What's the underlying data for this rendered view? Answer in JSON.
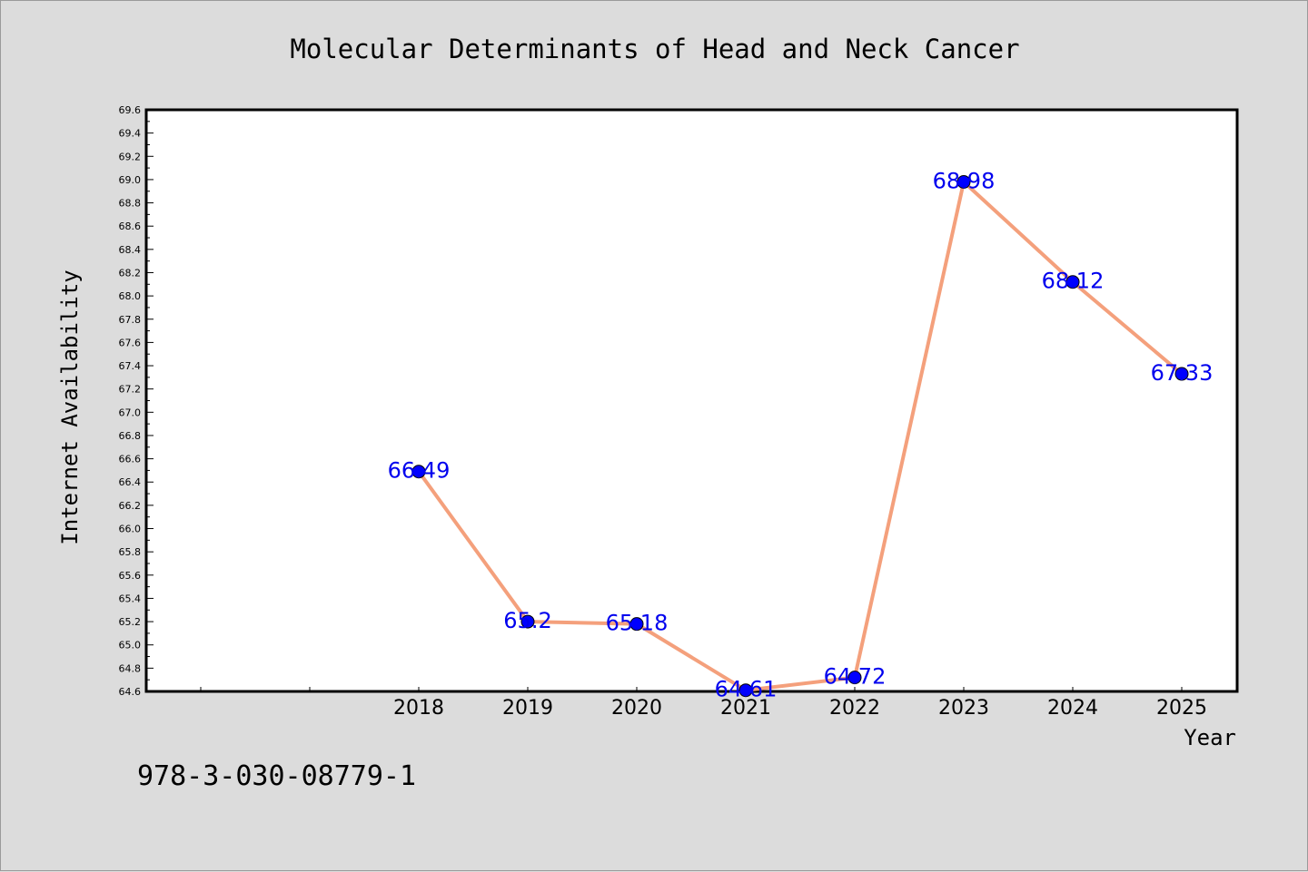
{
  "chart_data": {
    "type": "line",
    "title": "Molecular Determinants of Head and Neck Cancer",
    "xlabel": "Year",
    "ylabel": "Internet Availability",
    "categories": [
      "2018",
      "2019",
      "2020",
      "2021",
      "2022",
      "2023",
      "2024",
      "2025"
    ],
    "values": [
      66.49,
      65.2,
      65.18,
      64.61,
      64.72,
      68.98,
      68.12,
      67.33
    ],
    "data_labels": [
      "66.49",
      "65.2",
      "65.18",
      "64.61",
      "64.72",
      "68.98",
      "68.12",
      "67.33"
    ],
    "ylim": [
      64.6,
      69.6
    ],
    "ytick_step": 0.2,
    "grid": false,
    "legend": "none",
    "line_color": "#f4a07c",
    "marker_color": "#0000ff",
    "label_color": "#0000ee"
  },
  "footer": {
    "isbn": "978-3-030-08779-1"
  }
}
